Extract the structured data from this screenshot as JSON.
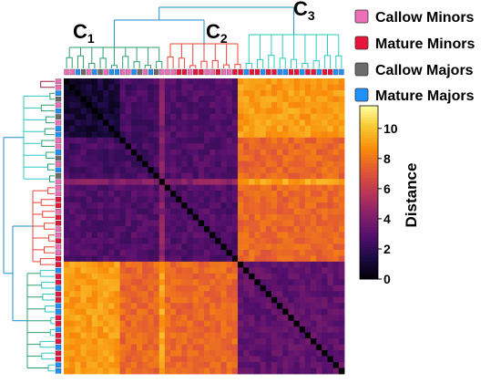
{
  "chart_data": {
    "type": "heatmap",
    "title": "",
    "matrix_size": 50,
    "cluster_labels": [
      {
        "letter": "C",
        "subscript": "1"
      },
      {
        "letter": "C",
        "subscript": "2"
      },
      {
        "letter": "C",
        "subscript": "3"
      }
    ],
    "legend": [
      {
        "label": "Callow Minors",
        "color": "#ee6fb8"
      },
      {
        "label": "Mature Minors",
        "color": "#e8143c"
      },
      {
        "label": "Callow Majors",
        "color": "#6b6b6b"
      },
      {
        "label": "Mature Majors",
        "color": "#1e90ff"
      }
    ],
    "colorbar": {
      "label": "Distance",
      "min": 0,
      "max": 11.5,
      "ticks": [
        0,
        2,
        4,
        6,
        8,
        10
      ],
      "colormap": "inferno"
    },
    "dendrogram_colors": {
      "root": "#1f8ec9",
      "c1": "#2f9e6e",
      "c2": "#e8463a",
      "c3": "#2ec9c0",
      "small": "#9e1b42"
    }
  }
}
